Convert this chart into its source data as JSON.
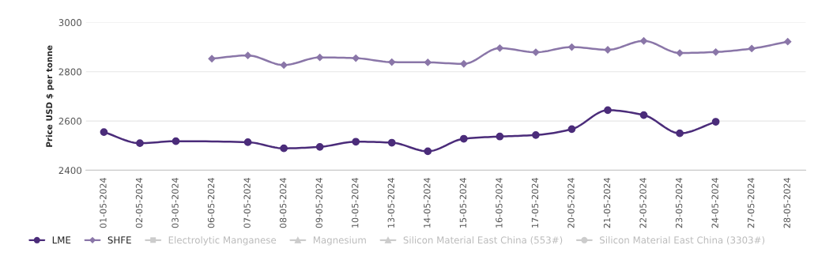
{
  "chart_data": {
    "type": "line",
    "ylabel": "Price USD $ per tonne",
    "categories": [
      "01-05-2024",
      "02-05-2024",
      "03-05-2024",
      "06-05-2024",
      "07-05-2024",
      "08-05-2024",
      "09-05-2024",
      "10-05-2024",
      "13-05-2024",
      "14-05-2024",
      "15-05-2024",
      "16-05-2024",
      "17-05-2024",
      "20-05-2024",
      "21-05-2024",
      "22-05-2024",
      "23-05-2024",
      "24-05-2024",
      "27-05-2024",
      "28-05-2024"
    ],
    "series": [
      {
        "name": "LME",
        "color": "#4b2c7a",
        "marker": "circle",
        "values": [
          2555,
          2510,
          2518,
          null,
          2514,
          2489,
          2495,
          2516,
          2512,
          2477,
          2528,
          2537,
          2543,
          2567,
          2644,
          2624,
          2550,
          2597,
          null,
          null
        ]
      },
      {
        "name": "SHFE",
        "color": "#8a76a8",
        "marker": "diamond",
        "values": [
          null,
          null,
          null,
          2853,
          2866,
          2827,
          2858,
          2855,
          2839,
          2838,
          2832,
          2896,
          2879,
          2900,
          2889,
          2925,
          2876,
          2880,
          2894,
          2922
        ]
      },
      {
        "name": "Electrolytic Manganese",
        "color": "#cccccc",
        "marker": "square",
        "values": [
          null,
          null,
          null,
          null,
          null,
          null,
          null,
          null,
          null,
          null,
          null,
          null,
          null,
          null,
          null,
          null,
          null,
          null,
          null,
          null
        ]
      },
      {
        "name": "Magnesium",
        "color": "#cccccc",
        "marker": "triangle",
        "values": [
          null,
          null,
          null,
          null,
          null,
          null,
          null,
          null,
          null,
          null,
          null,
          null,
          null,
          null,
          null,
          null,
          null,
          null,
          null,
          null
        ]
      },
      {
        "name": "Silicon Material East China (553#)",
        "color": "#cccccc",
        "marker": "triangle",
        "values": [
          null,
          null,
          null,
          null,
          null,
          null,
          null,
          null,
          null,
          null,
          null,
          null,
          null,
          null,
          null,
          null,
          null,
          null,
          null,
          null
        ]
      },
      {
        "name": "Silicon Material East China (3303#)",
        "color": "#cccccc",
        "marker": "circle",
        "values": [
          null,
          null,
          null,
          null,
          null,
          null,
          null,
          null,
          null,
          null,
          null,
          null,
          null,
          null,
          null,
          null,
          null,
          null,
          null,
          null
        ]
      }
    ],
    "ylim": [
      2400,
      3000
    ],
    "yticks": [
      2400,
      2600,
      2800,
      3000
    ],
    "grid": "y",
    "legend": "bottom left"
  }
}
